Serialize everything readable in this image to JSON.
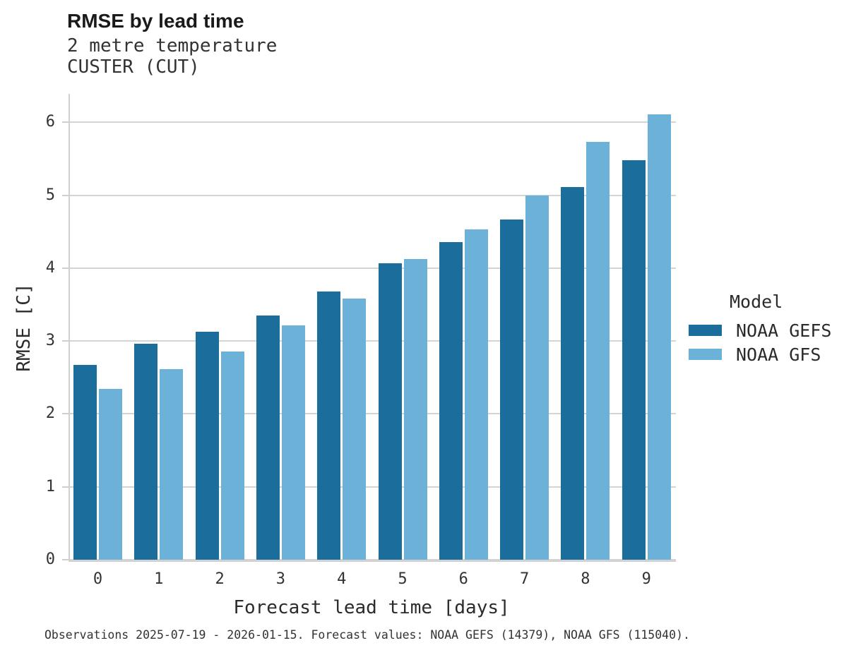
{
  "chart_data": {
    "type": "bar",
    "title": "RMSE by lead time",
    "subtitle_line1": "2 metre temperature",
    "subtitle_line2": "CUSTER (CUT)",
    "xlabel": "Forecast lead time [days]",
    "ylabel": "RMSE [C]",
    "categories": [
      "0",
      "1",
      "2",
      "3",
      "4",
      "5",
      "6",
      "7",
      "8",
      "9"
    ],
    "series": [
      {
        "name": "NOAA GEFS",
        "color": "#1b6d9b",
        "values": [
          2.67,
          2.96,
          3.13,
          3.35,
          3.68,
          4.07,
          4.36,
          4.67,
          5.11,
          5.48
        ]
      },
      {
        "name": "NOAA GFS",
        "color": "#6cb1d8",
        "values": [
          2.34,
          2.61,
          2.86,
          3.21,
          3.58,
          4.12,
          4.53,
          5.0,
          5.73,
          6.11
        ]
      }
    ],
    "legend_title": "Model",
    "legend_position": "right",
    "ylim": [
      0,
      6.39
    ],
    "yticks": [
      0,
      1,
      2,
      3,
      4,
      5,
      6
    ],
    "grid": "horizontal",
    "footnote": "Observations 2025-07-19 - 2026-01-15. Forecast values: NOAA GEFS (14379), NOAA GFS (115040)."
  }
}
